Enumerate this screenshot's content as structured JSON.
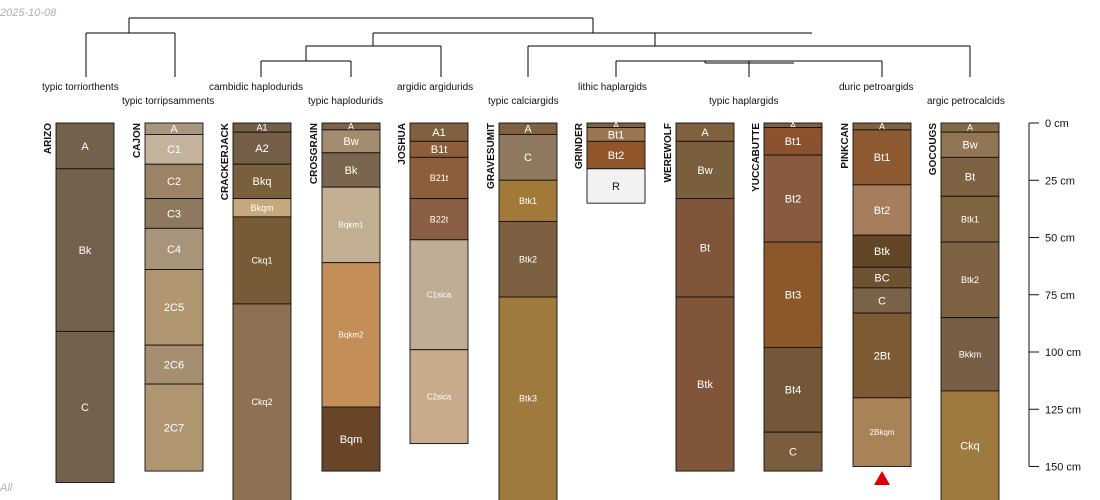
{
  "date_stamp": "2025-10-08",
  "footnote": "All",
  "depth_axis": {
    "unit": "cm",
    "ticks": [
      {
        "depth": 0,
        "label": "0 cm"
      },
      {
        "depth": 25,
        "label": "25 cm"
      },
      {
        "depth": 50,
        "label": "50 cm"
      },
      {
        "depth": 75,
        "label": "75 cm"
      },
      {
        "depth": 100,
        "label": "100 cm"
      },
      {
        "depth": 125,
        "label": "125 cm"
      },
      {
        "depth": 150,
        "label": "150 cm"
      }
    ]
  },
  "subgroup_labels": [
    "typic torriorthents",
    "typic torripsamments",
    "cambidic haplodurids",
    "typic haplodurids",
    "argidic argidurids",
    "typic calciargids",
    "lithic haplargids",
    "typic haplargids",
    "duric petroargids",
    "argic petrocalcids"
  ],
  "profiles": [
    {
      "name": "ARIZO",
      "horizons": [
        {
          "name": "A",
          "top": 0,
          "bottom": 20,
          "color": "#74614D"
        },
        {
          "name": "Bk",
          "top": 20,
          "bottom": 91,
          "color": "#74614D"
        },
        {
          "name": "C",
          "top": 91,
          "bottom": 157,
          "color": "#74614D"
        }
      ]
    },
    {
      "name": "CAJON",
      "horizons": [
        {
          "name": "A",
          "top": 0,
          "bottom": 5,
          "color": "#A8967E"
        },
        {
          "name": "C1",
          "top": 5,
          "bottom": 18,
          "color": "#C3B29C"
        },
        {
          "name": "C2",
          "top": 18,
          "bottom": 33,
          "color": "#9D8365"
        },
        {
          "name": "C3",
          "top": 33,
          "bottom": 46,
          "color": "#8E7960"
        },
        {
          "name": "C4",
          "top": 46,
          "bottom": 64,
          "color": "#A89478"
        },
        {
          "name": "2C5",
          "top": 64,
          "bottom": 97,
          "color": "#B09670"
        },
        {
          "name": "2C6",
          "top": 97,
          "bottom": 114,
          "color": "#A68E71"
        },
        {
          "name": "2C7",
          "top": 114,
          "bottom": 152,
          "color": "#B09670"
        }
      ]
    },
    {
      "name": "CRACKERJACK",
      "horizons": [
        {
          "name": "A1",
          "top": 0,
          "bottom": 4,
          "color": "#755E47"
        },
        {
          "name": "A2",
          "top": 4,
          "bottom": 18,
          "color": "#755E47"
        },
        {
          "name": "Bkq",
          "top": 18,
          "bottom": 33,
          "color": "#7A5F3D"
        },
        {
          "name": "Bkqm",
          "top": 33,
          "bottom": 41,
          "color": "#C5A87C"
        },
        {
          "name": "Ckq1",
          "top": 41,
          "bottom": 79,
          "color": "#775B36"
        },
        {
          "name": "Ckq2",
          "top": 79,
          "bottom": 165,
          "color": "#8D7152"
        }
      ]
    },
    {
      "name": "CROSGRAIN",
      "horizons": [
        {
          "name": "A",
          "top": 0,
          "bottom": 3,
          "color": "#7D6247"
        },
        {
          "name": "Bw",
          "top": 3,
          "bottom": 13,
          "color": "#A48C6F"
        },
        {
          "name": "Bk",
          "top": 13,
          "bottom": 28,
          "color": "#7A654E"
        },
        {
          "name": "Bqkm1",
          "top": 28,
          "bottom": 61,
          "color": "#C2AE91"
        },
        {
          "name": "Bqkm2",
          "top": 61,
          "bottom": 124,
          "color": "#C48E58"
        },
        {
          "name": "Bqm",
          "top": 124,
          "bottom": 152,
          "color": "#6A4427"
        }
      ]
    },
    {
      "name": "JOSHUA",
      "horizons": [
        {
          "name": "A1",
          "top": 0,
          "bottom": 8,
          "color": "#80613E"
        },
        {
          "name": "B1t",
          "top": 8,
          "bottom": 15,
          "color": "#8C5F3A"
        },
        {
          "name": "B21t",
          "top": 15,
          "bottom": 33,
          "color": "#8C5F3A"
        },
        {
          "name": "B22t",
          "top": 33,
          "bottom": 51,
          "color": "#895E42"
        },
        {
          "name": "C1sica",
          "top": 51,
          "bottom": 99,
          "color": "#BEAE96"
        },
        {
          "name": "C2sica",
          "top": 99,
          "bottom": 140,
          "color": "#C8AB8B"
        }
      ]
    },
    {
      "name": "GRAVESUMIT",
      "horizons": [
        {
          "name": "A",
          "top": 0,
          "bottom": 5,
          "color": "#80613E"
        },
        {
          "name": "C",
          "top": 5,
          "bottom": 25,
          "color": "#907A5F"
        },
        {
          "name": "Btk1",
          "top": 25,
          "bottom": 43,
          "color": "#A27938"
        },
        {
          "name": "Btk2",
          "top": 43,
          "bottom": 76,
          "color": "#7D6042"
        },
        {
          "name": "Btk3",
          "top": 76,
          "bottom": 165,
          "color": "#9F7A3F"
        }
      ]
    },
    {
      "name": "GRINDER",
      "horizons": [
        {
          "name": "A",
          "top": 0,
          "bottom": 2,
          "color": "#80613E"
        },
        {
          "name": "Bt1",
          "top": 2,
          "bottom": 8,
          "color": "#9C7650"
        },
        {
          "name": "Bt2",
          "top": 8,
          "bottom": 20,
          "color": "#91552B"
        },
        {
          "name": "R",
          "top": 20,
          "bottom": 35,
          "color": "#F2F2F2"
        }
      ]
    },
    {
      "name": "WEREWOLF",
      "horizons": [
        {
          "name": "A",
          "top": 0,
          "bottom": 8,
          "color": "#80613E"
        },
        {
          "name": "Bw",
          "top": 8,
          "bottom": 33,
          "color": "#7A5F3D"
        },
        {
          "name": "Bt",
          "top": 33,
          "bottom": 76,
          "color": "#80553A"
        },
        {
          "name": "Btk",
          "top": 76,
          "bottom": 152,
          "color": "#80553A"
        }
      ]
    },
    {
      "name": "YUCCABUTTE",
      "horizons": [
        {
          "name": "A",
          "top": 0,
          "bottom": 2,
          "color": "#80613E"
        },
        {
          "name": "Bt1",
          "top": 2,
          "bottom": 14,
          "color": "#8C5230"
        },
        {
          "name": "Bt2",
          "top": 14,
          "bottom": 52,
          "color": "#895A40"
        },
        {
          "name": "Bt3",
          "top": 52,
          "bottom": 98,
          "color": "#8D5829"
        },
        {
          "name": "Bt4",
          "top": 98,
          "bottom": 135,
          "color": "#725838"
        },
        {
          "name": "C",
          "top": 135,
          "bottom": 152,
          "color": "#795D3D"
        }
      ]
    },
    {
      "name": "PINKCAN",
      "horizons": [
        {
          "name": "A",
          "top": 0,
          "bottom": 3,
          "color": "#80613E"
        },
        {
          "name": "Bt1",
          "top": 3,
          "bottom": 27,
          "color": "#8D5A31"
        },
        {
          "name": "Bt2",
          "top": 27,
          "bottom": 49,
          "color": "#A67D5D"
        },
        {
          "name": "Btk",
          "top": 49,
          "bottom": 63,
          "color": "#634527"
        },
        {
          "name": "BC",
          "top": 63,
          "bottom": 72,
          "color": "#6E5130"
        },
        {
          "name": "C",
          "top": 72,
          "bottom": 83,
          "color": "#7A6248"
        },
        {
          "name": "2Bt",
          "top": 83,
          "bottom": 120,
          "color": "#7D5A34"
        },
        {
          "name": "2Bkqm",
          "top": 120,
          "bottom": 150,
          "color": "#A98258"
        }
      ]
    },
    {
      "name": "GOCOUGS",
      "horizons": [
        {
          "name": "A",
          "top": 0,
          "bottom": 4,
          "color": "#836A46"
        },
        {
          "name": "Bw",
          "top": 4,
          "bottom": 15,
          "color": "#917555"
        },
        {
          "name": "Bt",
          "top": 15,
          "bottom": 32,
          "color": "#7D6343"
        },
        {
          "name": "Btk1",
          "top": 32,
          "bottom": 52,
          "color": "#7E6441"
        },
        {
          "name": "Btk2",
          "top": 52,
          "bottom": 85,
          "color": "#7D6343"
        },
        {
          "name": "Bkkm",
          "top": 85,
          "bottom": 117,
          "color": "#775F47"
        },
        {
          "name": "Ckq",
          "top": 117,
          "bottom": 165,
          "color": "#9F7A3F"
        }
      ]
    }
  ]
}
